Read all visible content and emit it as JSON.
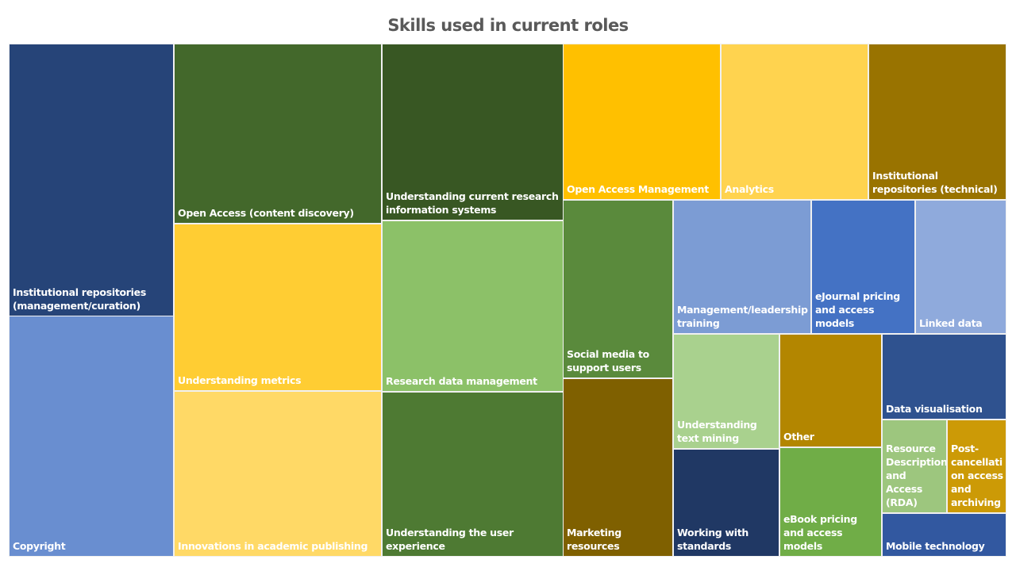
{
  "chart_data": {
    "type": "treemap",
    "title": "Skills used in current roles",
    "items": [
      {
        "label": "Institutional repositories (management/curation)",
        "color": "#264478"
      },
      {
        "label": "Copyright",
        "color": "#698ED0"
      },
      {
        "label": "Open Access (content discovery)",
        "color": "#43682B"
      },
      {
        "label": "Understanding metrics",
        "color": "#FFCD33"
      },
      {
        "label": "Innovations in academic publishing",
        "color": "#FFD966"
      },
      {
        "label": "Understanding current research information systems",
        "color": "#385723"
      },
      {
        "label": "Research data management",
        "color": "#8CC168"
      },
      {
        "label": "Understanding the user experience",
        "color": "#4E7A33"
      },
      {
        "label": "Open Access Management",
        "color": "#FFC000"
      },
      {
        "label": "Analytics",
        "color": "#FFD34F"
      },
      {
        "label": "Institutional repositories (technical)",
        "color": "#997300"
      },
      {
        "label": "Social media to support users",
        "color": "#5A8A3C"
      },
      {
        "label": "Marketing resources",
        "color": "#7F6000"
      },
      {
        "label": "Management/leadership training",
        "color": "#7C9CD4"
      },
      {
        "label": "eJournal pricing and access models",
        "color": "#4472C4"
      },
      {
        "label": "Linked data",
        "color": "#8FAADC"
      },
      {
        "label": "Understanding text mining",
        "color": "#A9D18E"
      },
      {
        "label": "Other",
        "color": "#B38600"
      },
      {
        "label": "Working with standards",
        "color": "#203864"
      },
      {
        "label": "eBook pricing and access models",
        "color": "#70AD47"
      },
      {
        "label": "Data visualisation",
        "color": "#2F528F"
      },
      {
        "label": "Resource Description and Access (RDA)",
        "color": "#9DC67E"
      },
      {
        "label": "Post-cancellation access and archiving",
        "color": "#CC9A06"
      },
      {
        "label": "Mobile technology",
        "color": "#3258A0"
      }
    ]
  },
  "labels_display": {
    "post_cancellation": [
      "Post-",
      "cancellati",
      "on access",
      "and",
      "archiving"
    ],
    "rda": [
      "Resource",
      "Description",
      "and Access",
      "(RDA)"
    ]
  }
}
